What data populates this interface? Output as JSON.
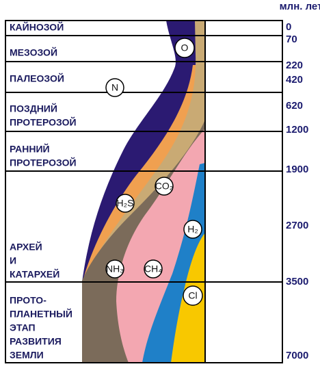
{
  "unit": "млн. лет",
  "eras": [
    {
      "lines": [
        "КАЙНОЗОЙ"
      ]
    },
    {
      "lines": [
        "МЕЗОЗОЙ"
      ]
    },
    {
      "lines": [
        "ПАЛЕОЗОЙ"
      ]
    },
    {
      "lines": [
        "ПОЗДНИЙ",
        "ПРОТЕРОЗОЙ"
      ]
    },
    {
      "lines": [
        "РАННИЙ",
        "ПРОТЕРОЗОЙ"
      ]
    },
    {
      "lines": [
        "АРХЕЙ",
        "И",
        "КАТАРХЕЙ"
      ]
    },
    {
      "lines": [
        "ПРОТО-",
        "ПЛАНЕТНЫЙ",
        "ЭТАП",
        "РАЗВИТИЯ",
        "ЗЕМЛИ"
      ]
    }
  ],
  "ages": [
    "0",
    "70",
    "220",
    "420",
    "620",
    "1200",
    "1900",
    "2700",
    "3500",
    "7000"
  ],
  "gases": [
    "O",
    "N",
    "CO₂",
    "H₂S",
    "H₂",
    "NH₃",
    "CH₄",
    "Cl"
  ]
}
